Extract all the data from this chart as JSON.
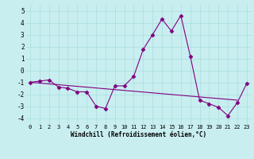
{
  "xlabel": "Windchill (Refroidissement éolien,°C)",
  "background_color": "#c8eef0",
  "line_color": "#800080",
  "x": [
    0,
    1,
    2,
    3,
    4,
    5,
    6,
    7,
    8,
    9,
    10,
    11,
    12,
    13,
    14,
    15,
    16,
    17,
    18,
    19,
    20,
    21,
    22,
    23
  ],
  "y_curve1": [
    -1.0,
    -0.9,
    -0.8,
    -1.4,
    -1.5,
    -1.8,
    -1.8,
    -3.0,
    -3.2,
    -1.3,
    -1.3,
    -0.5,
    1.75,
    3.0,
    4.3,
    3.3,
    4.6,
    1.2,
    -2.5,
    -2.8,
    -3.1,
    -3.8,
    -2.7,
    -1.1
  ],
  "straight_line_x": [
    0,
    22
  ],
  "straight_line_y": [
    -1.0,
    -2.5
  ],
  "ylim": [
    -4.5,
    5.5
  ],
  "xlim": [
    -0.5,
    23.5
  ],
  "yticks": [
    -4,
    -3,
    -2,
    -1,
    0,
    1,
    2,
    3,
    4,
    5
  ],
  "xticks": [
    0,
    1,
    2,
    3,
    4,
    5,
    6,
    7,
    8,
    9,
    10,
    11,
    12,
    13,
    14,
    15,
    16,
    17,
    18,
    19,
    20,
    21,
    22,
    23
  ],
  "grid_color": "#aadddd",
  "grid_linewidth": 0.5,
  "marker": "D",
  "markersize": 2.5,
  "linewidth": 0.8,
  "xlabel_fontsize": 5.5,
  "tick_fontsize": 5.0
}
